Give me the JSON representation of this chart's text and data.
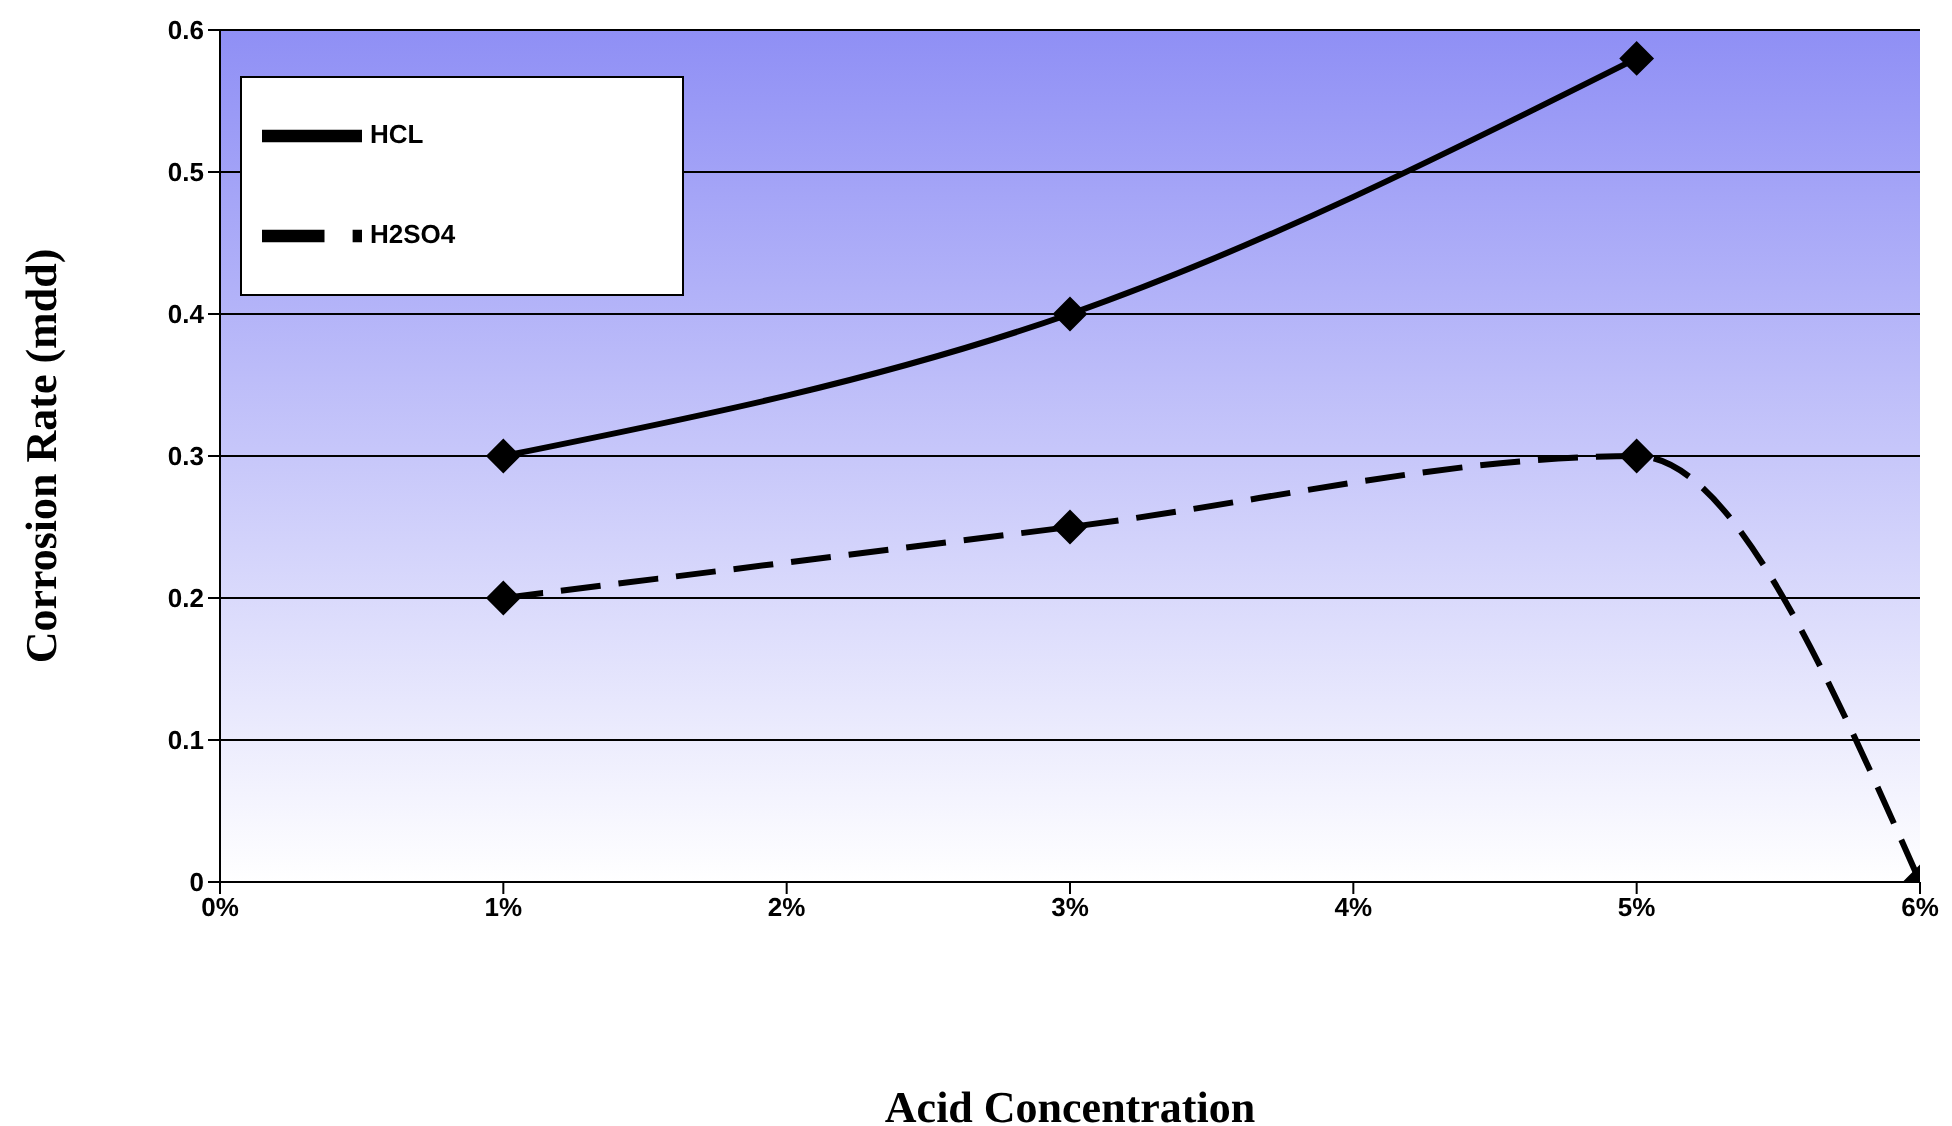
{
  "chart_data": {
    "type": "line",
    "xlabel": "Acid Concentration",
    "ylabel": "Corrosion Rate  (mdd)",
    "xlim": [
      0,
      6
    ],
    "xticks": [
      {
        "value": 0,
        "label": "0%"
      },
      {
        "value": 1,
        "label": "1%"
      },
      {
        "value": 2,
        "label": "2%"
      },
      {
        "value": 3,
        "label": "3%"
      },
      {
        "value": 4,
        "label": "4%"
      },
      {
        "value": 5,
        "label": "5%"
      },
      {
        "value": 6,
        "label": "6%"
      }
    ],
    "ylim": [
      0,
      0.6
    ],
    "yticks": [
      0,
      0.1,
      0.2,
      0.3,
      0.4,
      0.5,
      0.6
    ],
    "grid": "y",
    "legend": "top left",
    "marker": "diamond",
    "series": [
      {
        "name": "HCL",
        "color": "#000000",
        "x": [
          1,
          3,
          5
        ],
        "values": [
          0.3,
          0.4,
          0.58
        ],
        "line_style": "solid"
      },
      {
        "name": "H2SO4",
        "color": "#000000",
        "x": [
          1,
          3,
          5,
          6
        ],
        "values": [
          0.2,
          0.25,
          0.3,
          0
        ],
        "line_style": "dashed"
      }
    ]
  }
}
